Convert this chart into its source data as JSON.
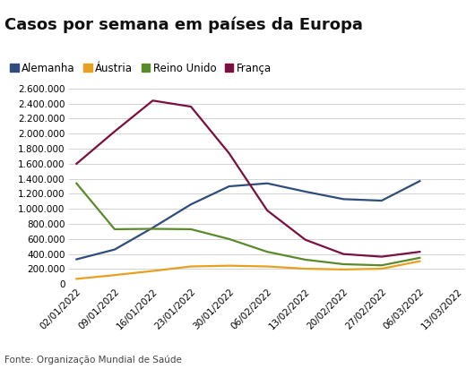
{
  "title": "Casos por semana em países da Europa",
  "source": "Fonte: Organização Mundial de Saúde",
  "x_labels": [
    "02/01/2022",
    "09/01/2022",
    "16/01/2022",
    "23/01/2022",
    "30/01/2022",
    "06/02/2022",
    "13/02/2022",
    "20/02/2022",
    "27/02/2022",
    "06/03/2022",
    "13/03/2022"
  ],
  "series": [
    {
      "name": "Alemanha",
      "color": "#2e4d7b",
      "values": [
        330000,
        460000,
        750000,
        1060000,
        1300000,
        1340000,
        1230000,
        1130000,
        1110000,
        1370000,
        null
      ]
    },
    {
      "name": "Áustria",
      "color": "#e8a020",
      "values": [
        70000,
        120000,
        175000,
        235000,
        245000,
        235000,
        205000,
        195000,
        205000,
        305000,
        null
      ]
    },
    {
      "name": "Reino Unido",
      "color": "#5a8a2a",
      "values": [
        1340000,
        730000,
        735000,
        730000,
        600000,
        430000,
        325000,
        265000,
        250000,
        350000,
        null
      ]
    },
    {
      "name": "França",
      "color": "#7b1040",
      "values": [
        1600000,
        2030000,
        2440000,
        2360000,
        1740000,
        980000,
        590000,
        400000,
        365000,
        430000,
        null
      ]
    }
  ],
  "ylim": [
    0,
    2600000
  ],
  "yticks": [
    0,
    200000,
    400000,
    600000,
    800000,
    1000000,
    1200000,
    1400000,
    1600000,
    1800000,
    2000000,
    2200000,
    2400000,
    2600000
  ],
  "background_color": "#ffffff",
  "grid_color": "#cccccc",
  "title_fontsize": 13,
  "legend_fontsize": 8.5,
  "tick_fontsize": 7.5,
  "source_fontsize": 7.5
}
